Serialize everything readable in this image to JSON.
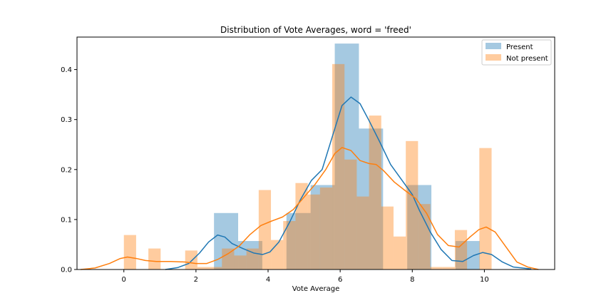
{
  "chart_data": {
    "type": "histogram",
    "title": "Distribution of Vote Averages, word = 'freed'",
    "xlabel": "Vote Average",
    "ylabel": "",
    "xlim": [
      -1.3,
      11.95
    ],
    "ylim": [
      0,
      0.465
    ],
    "xticks": [
      0,
      2,
      4,
      6,
      8,
      10
    ],
    "yticks": [
      0.0,
      0.1,
      0.2,
      0.3,
      0.4
    ],
    "ytick_labels": [
      "0.0",
      "0.1",
      "0.2",
      "0.3",
      "0.4"
    ],
    "legend_position": "top-right",
    "grid": false,
    "series": [
      {
        "name": "Present",
        "color": "#1f77b4",
        "bars": [
          {
            "x0": 2.5,
            "x1": 3.17,
            "y": 0.113
          },
          {
            "x0": 3.17,
            "x1": 3.84,
            "y": 0.057
          },
          {
            "x0": 3.84,
            "x1": 4.51,
            "y": 0.0
          },
          {
            "x0": 4.51,
            "x1": 5.18,
            "y": 0.113
          },
          {
            "x0": 5.18,
            "x1": 5.85,
            "y": 0.169
          },
          {
            "x0": 5.85,
            "x1": 6.52,
            "y": 0.452
          },
          {
            "x0": 6.52,
            "x1": 7.19,
            "y": 0.282
          },
          {
            "x0": 7.19,
            "x1": 7.86,
            "y": 0.0
          },
          {
            "x0": 7.86,
            "x1": 8.53,
            "y": 0.169
          },
          {
            "x0": 8.53,
            "x1": 9.2,
            "y": 0.0
          },
          {
            "x0": 9.2,
            "x1": 9.87,
            "y": 0.057
          }
        ],
        "kde": [
          [
            1.15,
            0.0
          ],
          [
            1.5,
            0.004
          ],
          [
            1.8,
            0.012
          ],
          [
            2.1,
            0.033
          ],
          [
            2.35,
            0.055
          ],
          [
            2.6,
            0.069
          ],
          [
            2.8,
            0.065
          ],
          [
            3.0,
            0.052
          ],
          [
            3.3,
            0.042
          ],
          [
            3.6,
            0.033
          ],
          [
            3.85,
            0.03
          ],
          [
            4.05,
            0.035
          ],
          [
            4.3,
            0.055
          ],
          [
            4.6,
            0.095
          ],
          [
            4.9,
            0.14
          ],
          [
            5.2,
            0.178
          ],
          [
            5.5,
            0.2
          ],
          [
            5.8,
            0.27
          ],
          [
            6.05,
            0.328
          ],
          [
            6.3,
            0.345
          ],
          [
            6.55,
            0.332
          ],
          [
            6.8,
            0.298
          ],
          [
            7.1,
            0.255
          ],
          [
            7.4,
            0.21
          ],
          [
            7.7,
            0.18
          ],
          [
            8.0,
            0.15
          ],
          [
            8.2,
            0.118
          ],
          [
            8.5,
            0.075
          ],
          [
            8.8,
            0.04
          ],
          [
            9.1,
            0.018
          ],
          [
            9.4,
            0.016
          ],
          [
            9.7,
            0.028
          ],
          [
            9.95,
            0.034
          ],
          [
            10.2,
            0.03
          ],
          [
            10.5,
            0.015
          ],
          [
            10.8,
            0.005
          ],
          [
            11.3,
            0.001
          ]
        ]
      },
      {
        "name": "Not present",
        "color": "#ff7f0e",
        "bars": [
          {
            "x0": 0.0,
            "x1": 0.34,
            "y": 0.069
          },
          {
            "x0": 0.34,
            "x1": 0.68,
            "y": 0.0
          },
          {
            "x0": 0.68,
            "x1": 1.02,
            "y": 0.042
          },
          {
            "x0": 1.02,
            "x1": 1.36,
            "y": 0.0
          },
          {
            "x0": 1.36,
            "x1": 1.7,
            "y": 0.0
          },
          {
            "x0": 1.7,
            "x1": 2.04,
            "y": 0.038
          },
          {
            "x0": 2.04,
            "x1": 2.38,
            "y": 0.005
          },
          {
            "x0": 2.38,
            "x1": 2.72,
            "y": 0.005
          },
          {
            "x0": 2.72,
            "x1": 3.06,
            "y": 0.042
          },
          {
            "x0": 3.06,
            "x1": 3.4,
            "y": 0.028
          },
          {
            "x0": 3.4,
            "x1": 3.74,
            "y": 0.042
          },
          {
            "x0": 3.74,
            "x1": 4.08,
            "y": 0.159
          },
          {
            "x0": 4.08,
            "x1": 4.42,
            "y": 0.059
          },
          {
            "x0": 4.42,
            "x1": 4.76,
            "y": 0.097
          },
          {
            "x0": 4.76,
            "x1": 5.1,
            "y": 0.173
          },
          {
            "x0": 5.1,
            "x1": 5.44,
            "y": 0.15
          },
          {
            "x0": 5.44,
            "x1": 5.78,
            "y": 0.164
          },
          {
            "x0": 5.78,
            "x1": 6.12,
            "y": 0.411
          },
          {
            "x0": 6.12,
            "x1": 6.46,
            "y": 0.22
          },
          {
            "x0": 6.46,
            "x1": 6.8,
            "y": 0.146
          },
          {
            "x0": 6.8,
            "x1": 7.14,
            "y": 0.308
          },
          {
            "x0": 7.14,
            "x1": 7.48,
            "y": 0.126
          },
          {
            "x0": 7.48,
            "x1": 7.82,
            "y": 0.066
          },
          {
            "x0": 7.82,
            "x1": 8.16,
            "y": 0.257
          },
          {
            "x0": 8.16,
            "x1": 8.5,
            "y": 0.131
          },
          {
            "x0": 8.5,
            "x1": 8.84,
            "y": 0.005
          },
          {
            "x0": 8.84,
            "x1": 9.18,
            "y": 0.005
          },
          {
            "x0": 9.18,
            "x1": 9.52,
            "y": 0.079
          },
          {
            "x0": 9.52,
            "x1": 9.86,
            "y": 0.0
          },
          {
            "x0": 9.86,
            "x1": 10.2,
            "y": 0.243
          }
        ],
        "kde": [
          [
            -1.2,
            0.0
          ],
          [
            -0.8,
            0.003
          ],
          [
            -0.4,
            0.012
          ],
          [
            -0.1,
            0.022
          ],
          [
            0.1,
            0.025
          ],
          [
            0.35,
            0.022
          ],
          [
            0.6,
            0.018
          ],
          [
            0.9,
            0.016
          ],
          [
            1.3,
            0.016
          ],
          [
            1.7,
            0.015
          ],
          [
            2.0,
            0.012
          ],
          [
            2.3,
            0.012
          ],
          [
            2.6,
            0.02
          ],
          [
            2.9,
            0.032
          ],
          [
            3.2,
            0.047
          ],
          [
            3.5,
            0.07
          ],
          [
            3.8,
            0.088
          ],
          [
            4.1,
            0.097
          ],
          [
            4.4,
            0.105
          ],
          [
            4.7,
            0.12
          ],
          [
            5.0,
            0.145
          ],
          [
            5.3,
            0.17
          ],
          [
            5.6,
            0.2
          ],
          [
            5.85,
            0.232
          ],
          [
            6.05,
            0.244
          ],
          [
            6.3,
            0.238
          ],
          [
            6.55,
            0.218
          ],
          [
            6.8,
            0.212
          ],
          [
            7.0,
            0.21
          ],
          [
            7.2,
            0.198
          ],
          [
            7.5,
            0.175
          ],
          [
            7.8,
            0.158
          ],
          [
            8.1,
            0.142
          ],
          [
            8.4,
            0.112
          ],
          [
            8.7,
            0.07
          ],
          [
            9.0,
            0.048
          ],
          [
            9.3,
            0.045
          ],
          [
            9.6,
            0.065
          ],
          [
            9.85,
            0.08
          ],
          [
            10.05,
            0.085
          ],
          [
            10.3,
            0.075
          ],
          [
            10.6,
            0.045
          ],
          [
            10.9,
            0.015
          ],
          [
            11.2,
            0.005
          ],
          [
            11.5,
            0.0
          ]
        ]
      }
    ]
  }
}
